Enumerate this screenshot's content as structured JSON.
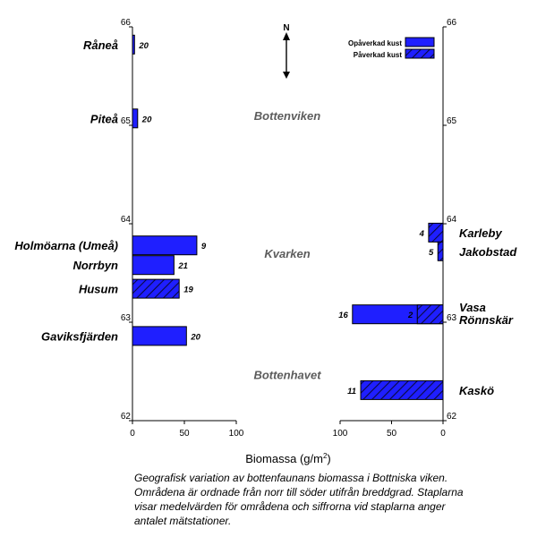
{
  "chart_data": {
    "type": "bar",
    "orientation": "horizontal",
    "xlabel": "Biomassa",
    "xlabel_unit_prefix": "(g/m",
    "xlabel_unit_exp": "2",
    "xlabel_unit_suffix": ")",
    "left_panel": {
      "xlim": [
        0,
        100
      ],
      "xticks": [
        0,
        50,
        100
      ],
      "direction": "left-to-right"
    },
    "right_panel": {
      "xlim": [
        0,
        100
      ],
      "xticks": [
        100,
        50,
        0
      ],
      "direction": "right-to-left"
    },
    "ylim": [
      62,
      66
    ],
    "yticks": [
      62,
      63,
      64,
      65,
      66
    ],
    "series": [
      {
        "name": "Opåverkad kust",
        "color": "#1f1fff",
        "pattern": "solid"
      },
      {
        "name": "Påverkad kust",
        "color": "#1f1fff",
        "pattern": "hatched"
      }
    ],
    "bars": [
      {
        "panel": "left",
        "label": "Råneå",
        "latitude": 65.82,
        "value": 2,
        "count": "20",
        "series": "Opåverkad kust"
      },
      {
        "panel": "left",
        "label": "Piteå",
        "latitude": 65.07,
        "value": 5,
        "count": "20",
        "series": "Opåverkad kust"
      },
      {
        "panel": "left",
        "label": "Holmöarna (Umeå)",
        "latitude": 63.78,
        "value": 62,
        "count": "9",
        "series": "Opåverkad kust"
      },
      {
        "panel": "left",
        "label": "Norrbyn",
        "latitude": 63.58,
        "value": 40,
        "count": "21",
        "series": "Opåverkad kust"
      },
      {
        "panel": "left",
        "label": "Husum",
        "latitude": 63.34,
        "value": 45,
        "count": "19",
        "series": "Påverkad kust"
      },
      {
        "panel": "left",
        "label": "Gaviksfjärden",
        "latitude": 62.86,
        "value": 52,
        "count": "20",
        "series": "Opåverkad kust"
      },
      {
        "panel": "right",
        "label": "Karleby",
        "latitude": 63.91,
        "value": 14,
        "count": "4",
        "series": "Påverkad kust"
      },
      {
        "panel": "right",
        "label": "Jakobstad",
        "latitude": 63.72,
        "value": 5,
        "count": "5",
        "series": "Påverkad kust"
      },
      {
        "panel": "right",
        "label": "Vasa",
        "latitude": 63.08,
        "value": 88,
        "count": "16",
        "series": "Opåverkad kust"
      },
      {
        "panel": "right",
        "label": "Rönnskär",
        "latitude": 63.08,
        "value": 25,
        "count": "2",
        "series": "Påverkad kust"
      },
      {
        "panel": "right",
        "label": "Kaskö",
        "latitude": 62.31,
        "value": 80,
        "count": "11",
        "series": "Påverkad kust"
      }
    ],
    "region_labels": [
      {
        "text": "Bottenviken",
        "latitude": 65.1
      },
      {
        "text": "Kvarken",
        "latitude": 63.7
      },
      {
        "text": "Bottenhavet",
        "latitude": 62.47
      }
    ],
    "north_label": "N",
    "legend_position": "top-right"
  },
  "caption": "Geografisk variation av bottenfaunans biomassa i Bottniska viken. Områdena är ordnade från norr till söder utifrån breddgrad. Staplarna visar medelvärden för områdena och siffrorna vid staplarna anger antalet mätstationer.",
  "colors": {
    "bar_fill": "#1f1fff",
    "axis": "#000000",
    "region_text": "#5c5c5c"
  }
}
